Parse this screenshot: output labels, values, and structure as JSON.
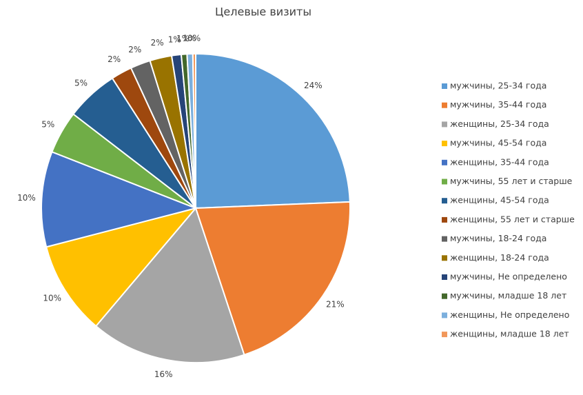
{
  "chart_data": {
    "type": "pie",
    "title": "Целевые визиты",
    "categories": [
      "мужчины, 25-34 года",
      "мужчины, 35-44 года",
      "женщины, 25-34 года",
      "мужчины, 45-54 года",
      "женщины, 35-44 года",
      "мужчины, 55 лет и старше",
      "женщины, 45-54 года",
      "женщины, 55 лет и старше",
      "мужчины, 18-24 года",
      "женщины, 18-24 года",
      "мужчины, Не определено",
      "мужчины, младше 18 лет",
      "женщины, Не определено",
      "женщины, младше 18 лет"
    ],
    "values": [
      24.4,
      20.6,
      16.3,
      9.8,
      10.0,
      4.5,
      5.5,
      2.2,
      2.1,
      2.3,
      1.0,
      0.6,
      0.6,
      0.3
    ],
    "value_labels": [
      "24%",
      "21%",
      "16%",
      "10%",
      "10%",
      "5%",
      "5%",
      "2%",
      "2%",
      "2%",
      "1%",
      "1%",
      "1%",
      "0%"
    ],
    "colors": [
      "#5b9bd5",
      "#ed7d31",
      "#a5a5a5",
      "#ffc000",
      "#4472c4",
      "#70ad47",
      "#255e91",
      "#9e480e",
      "#636363",
      "#997300",
      "#264478",
      "#43682b",
      "#7cafdd",
      "#f1975a"
    ],
    "legend": "right"
  }
}
